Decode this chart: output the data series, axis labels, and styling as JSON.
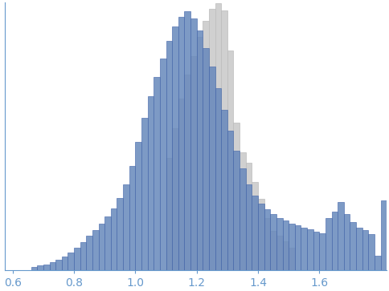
{
  "title": "",
  "xlabel": "",
  "ylabel": "",
  "xlim": [
    0.575,
    1.82
  ],
  "ylim": [
    0,
    1.0
  ],
  "xticks": [
    0.6,
    0.8,
    1.0,
    1.2,
    1.4,
    1.6
  ],
  "bin_width": 0.02,
  "blue_color": "#6688bb",
  "blue_edge": "#4466aa",
  "gray_color": "#d0d0d0",
  "gray_edge": "#bbbbbb",
  "blue_alpha": 0.85,
  "tick_color": "#6699cc",
  "spine_color": "#6699cc",
  "background_color": "#ffffff",
  "blue_bins": [
    0.66,
    0.68,
    0.7,
    0.72,
    0.74,
    0.76,
    0.78,
    0.8,
    0.82,
    0.84,
    0.86,
    0.88,
    0.9,
    0.92,
    0.94,
    0.96,
    0.98,
    1.0,
    1.02,
    1.04,
    1.06,
    1.08,
    1.1,
    1.12,
    1.14,
    1.16,
    1.18,
    1.2,
    1.22,
    1.24,
    1.26,
    1.28,
    1.3,
    1.32,
    1.34,
    1.36,
    1.38,
    1.4,
    1.42,
    1.44,
    1.46,
    1.48,
    1.5,
    1.52,
    1.54,
    1.56,
    1.58,
    1.6,
    1.62,
    1.64,
    1.66,
    1.68,
    1.7,
    1.72,
    1.74,
    1.76,
    1.78,
    1.8
  ],
  "blue_heights": [
    0.012,
    0.018,
    0.022,
    0.03,
    0.038,
    0.05,
    0.065,
    0.085,
    0.105,
    0.128,
    0.15,
    0.175,
    0.2,
    0.23,
    0.27,
    0.32,
    0.39,
    0.48,
    0.57,
    0.65,
    0.72,
    0.79,
    0.855,
    0.91,
    0.945,
    0.965,
    0.94,
    0.895,
    0.83,
    0.76,
    0.68,
    0.6,
    0.52,
    0.445,
    0.38,
    0.32,
    0.278,
    0.25,
    0.228,
    0.21,
    0.195,
    0.185,
    0.175,
    0.168,
    0.16,
    0.152,
    0.145,
    0.138,
    0.195,
    0.22,
    0.255,
    0.21,
    0.18,
    0.16,
    0.15,
    0.135,
    0.055,
    0.26
  ],
  "gray_bins": [
    1.1,
    1.12,
    1.14,
    1.16,
    1.18,
    1.2,
    1.22,
    1.24,
    1.26,
    1.28,
    1.3,
    1.32,
    1.34,
    1.36,
    1.38,
    1.4,
    1.42,
    1.44,
    1.46,
    1.48,
    1.5
  ],
  "gray_heights": [
    0.42,
    0.53,
    0.64,
    0.73,
    0.8,
    0.87,
    0.93,
    0.975,
    0.995,
    0.97,
    0.82,
    0.55,
    0.44,
    0.4,
    0.33,
    0.268,
    0.195,
    0.148,
    0.13,
    0.108,
    0.085
  ]
}
